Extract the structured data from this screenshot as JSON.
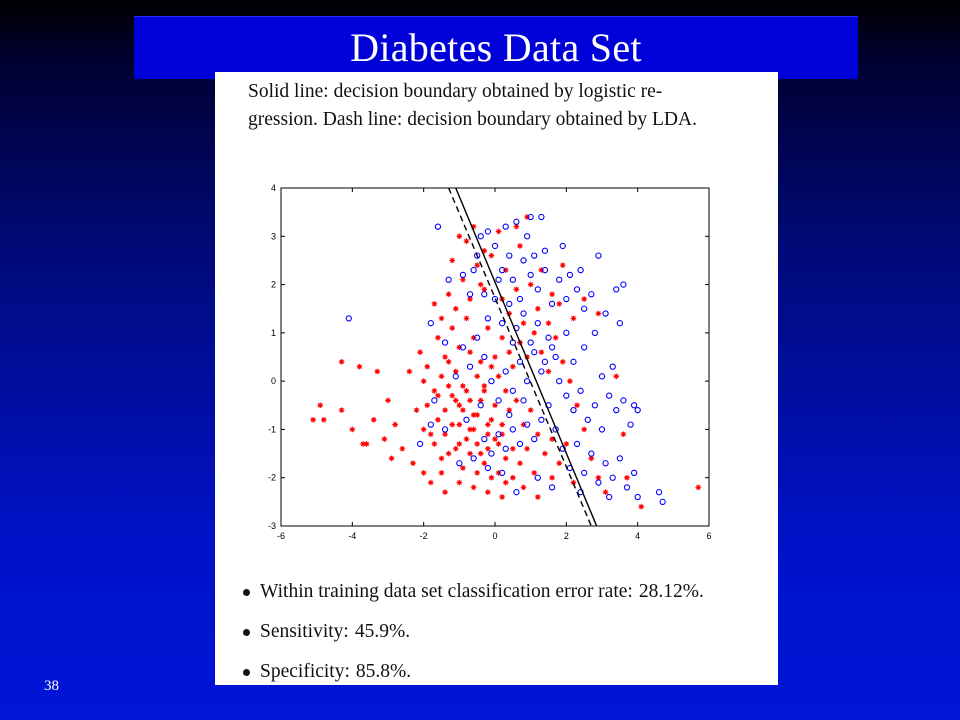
{
  "slide": {
    "title": "Diabetes Data Set",
    "page_number": "38"
  },
  "figure": {
    "caption_line1": "Solid line: decision boundary obtained by logistic re-",
    "caption_line2": "gression. Dash line: decision boundary obtained by LDA."
  },
  "bullets": [
    {
      "label": "Within training data set classification error rate:",
      "value": "28.12%."
    },
    {
      "label": "Sensitivity:",
      "value": "45.9%."
    },
    {
      "label": "Specificity:",
      "value": "85.8%."
    }
  ],
  "colors": {
    "slide_background": "#0012c8",
    "title_bar": "#0000d8",
    "class_star": "#ff0000",
    "class_circle": "#0000ff"
  },
  "chart_data": {
    "type": "scatter",
    "title": "",
    "xlabel": "",
    "ylabel": "",
    "xlim": [
      -6,
      6
    ],
    "ylim": [
      -3,
      4
    ],
    "xticks": [
      -6,
      -4,
      -2,
      0,
      2,
      4,
      6
    ],
    "yticks": [
      -3,
      -2,
      -1,
      0,
      1,
      2,
      3,
      4
    ],
    "grid": false,
    "series": [
      {
        "marker": "star",
        "color": "#ff0000",
        "points": [
          [
            -1.9,
            -0.5
          ],
          [
            -1.6,
            -0.8
          ],
          [
            -1.4,
            -1.1
          ],
          [
            -1.2,
            -0.3
          ],
          [
            -1.1,
            -1.4
          ],
          [
            -1.0,
            -0.9
          ],
          [
            -0.9,
            -0.6
          ],
          [
            -0.8,
            -1.2
          ],
          [
            -0.7,
            -0.4
          ],
          [
            -0.6,
            -1.0
          ],
          [
            -0.5,
            -0.7
          ],
          [
            -0.4,
            -1.5
          ],
          [
            -0.3,
            -0.2
          ],
          [
            -0.2,
            -1.1
          ],
          [
            -0.1,
            -0.8
          ],
          [
            0.0,
            -0.5
          ],
          [
            0.1,
            -1.3
          ],
          [
            0.2,
            -0.9
          ],
          [
            0.3,
            -1.6
          ],
          [
            0.4,
            -0.6
          ],
          [
            -1.5,
            -1.6
          ],
          [
            -1.3,
            -0.1
          ],
          [
            -1.1,
            0.2
          ],
          [
            -0.9,
            -1.8
          ],
          [
            -0.7,
            -1.5
          ],
          [
            -0.5,
            -1.9
          ],
          [
            -0.3,
            -1.7
          ],
          [
            -0.1,
            -2.0
          ],
          [
            0.1,
            -1.9
          ],
          [
            0.3,
            -2.1
          ],
          [
            -1.8,
            -1.1
          ],
          [
            -1.6,
            -0.3
          ],
          [
            -1.4,
            -0.6
          ],
          [
            -1.2,
            -0.9
          ],
          [
            -1.0,
            -1.3
          ],
          [
            -0.8,
            -0.2
          ],
          [
            -0.6,
            -0.7
          ],
          [
            -0.4,
            -0.4
          ],
          [
            -0.2,
            -0.9
          ],
          [
            0.0,
            -1.2
          ],
          [
            -2.2,
            -0.6
          ],
          [
            -2.0,
            -1.0
          ],
          [
            -1.7,
            -1.3
          ],
          [
            -1.3,
            -1.5
          ],
          [
            -1.0,
            -0.5
          ],
          [
            -0.7,
            -1.0
          ],
          [
            -0.5,
            -1.3
          ],
          [
            -0.2,
            -1.4
          ],
          [
            0.2,
            -1.1
          ],
          [
            0.5,
            -1.4
          ],
          [
            -2.4,
            0.2
          ],
          [
            -2.1,
            0.6
          ],
          [
            -1.9,
            0.3
          ],
          [
            -1.6,
            0.9
          ],
          [
            -1.4,
            0.5
          ],
          [
            -1.2,
            1.1
          ],
          [
            -1.0,
            0.7
          ],
          [
            -0.8,
            1.3
          ],
          [
            -0.6,
            0.9
          ],
          [
            -0.4,
            0.4
          ],
          [
            -1.7,
            1.6
          ],
          [
            -1.5,
            1.3
          ],
          [
            -1.3,
            1.8
          ],
          [
            -1.1,
            1.5
          ],
          [
            -0.9,
            2.1
          ],
          [
            -0.7,
            1.7
          ],
          [
            -0.5,
            2.4
          ],
          [
            -0.3,
            1.9
          ],
          [
            -0.1,
            2.6
          ],
          [
            -0.8,
            2.9
          ],
          [
            -1.2,
            2.5
          ],
          [
            -1.0,
            3.0
          ],
          [
            -0.6,
            3.2
          ],
          [
            -0.3,
            2.7
          ],
          [
            0.1,
            3.1
          ],
          [
            0.6,
            3.2
          ],
          [
            0.9,
            3.4
          ],
          [
            0.7,
            2.8
          ],
          [
            0.3,
            2.3
          ],
          [
            -0.4,
            2.0
          ],
          [
            -2.8,
            -0.9
          ],
          [
            -3.1,
            -1.2
          ],
          [
            -3.4,
            -0.8
          ],
          [
            -3.7,
            -1.3
          ],
          [
            -4.0,
            -1.0
          ],
          [
            -4.3,
            -0.6
          ],
          [
            -4.8,
            -0.8
          ],
          [
            -4.9,
            -0.5
          ],
          [
            -5.1,
            -0.8
          ],
          [
            -3.3,
            0.2
          ],
          [
            -3.0,
            -0.4
          ],
          [
            -2.6,
            -1.4
          ],
          [
            -2.3,
            -1.7
          ],
          [
            -2.0,
            -1.9
          ],
          [
            -1.8,
            -2.1
          ],
          [
            -1.5,
            -1.9
          ],
          [
            -4.3,
            0.4
          ],
          [
            -3.6,
            -1.3
          ],
          [
            -2.9,
            -1.6
          ],
          [
            -3.8,
            0.3
          ],
          [
            0.6,
            -0.4
          ],
          [
            0.8,
            -0.9
          ],
          [
            1.0,
            -0.6
          ],
          [
            1.2,
            -1.1
          ],
          [
            0.7,
            -1.7
          ],
          [
            0.9,
            -1.4
          ],
          [
            1.1,
            -1.9
          ],
          [
            1.4,
            -1.5
          ],
          [
            1.6,
            -1.2
          ],
          [
            1.8,
            -1.7
          ],
          [
            0.5,
            0.3
          ],
          [
            0.7,
            0.8
          ],
          [
            0.9,
            0.5
          ],
          [
            1.1,
            1.0
          ],
          [
            1.3,
            0.6
          ],
          [
            1.5,
            0.2
          ],
          [
            1.7,
            0.9
          ],
          [
            1.9,
            0.4
          ],
          [
            2.1,
            0.0
          ],
          [
            2.3,
            -0.5
          ],
          [
            2.5,
            -1.0
          ],
          [
            2.7,
            -1.6
          ],
          [
            2.9,
            -2.0
          ],
          [
            3.1,
            -2.3
          ],
          [
            2.0,
            -1.3
          ],
          [
            2.2,
            -2.1
          ],
          [
            1.6,
            -2.0
          ],
          [
            3.6,
            -1.1
          ],
          [
            3.4,
            0.1
          ],
          [
            5.7,
            -2.2
          ],
          [
            1.0,
            2.0
          ],
          [
            1.3,
            2.3
          ],
          [
            1.6,
            1.8
          ],
          [
            1.9,
            2.4
          ],
          [
            1.2,
            1.5
          ],
          [
            1.5,
            1.2
          ],
          [
            1.8,
            1.6
          ],
          [
            2.2,
            1.3
          ],
          [
            2.5,
            1.7
          ],
          [
            2.9,
            1.4
          ],
          [
            0.2,
            0.9
          ],
          [
            0.4,
            1.4
          ],
          [
            0.6,
            1.9
          ],
          [
            0.1,
            0.1
          ],
          [
            0.3,
            -0.2
          ],
          [
            0.0,
            0.5
          ],
          [
            -0.2,
            1.1
          ],
          [
            0.4,
            0.6
          ],
          [
            0.2,
            1.7
          ],
          [
            0.8,
            1.2
          ],
          [
            -0.3,
            -0.1
          ],
          [
            -0.1,
            0.3
          ],
          [
            -0.5,
            0.1
          ],
          [
            -0.7,
            0.6
          ],
          [
            -0.9,
            -0.1
          ],
          [
            -1.1,
            -0.4
          ],
          [
            -1.3,
            0.4
          ],
          [
            -1.5,
            0.1
          ],
          [
            -1.7,
            -0.2
          ],
          [
            -2.0,
            0.0
          ],
          [
            -0.6,
            -2.2
          ],
          [
            -0.2,
            -2.3
          ],
          [
            0.2,
            -2.4
          ],
          [
            -1.0,
            -2.1
          ],
          [
            -1.4,
            -2.3
          ],
          [
            0.5,
            -2.0
          ],
          [
            0.8,
            -2.2
          ],
          [
            1.2,
            -2.4
          ],
          [
            4.1,
            -2.6
          ],
          [
            3.7,
            -2.0
          ]
        ]
      },
      {
        "marker": "circle",
        "color": "#0000ff",
        "points": [
          [
            -4.1,
            1.3
          ],
          [
            -2.1,
            -1.3
          ],
          [
            -1.8,
            1.2
          ],
          [
            -1.7,
            -0.4
          ],
          [
            -1.4,
            0.8
          ],
          [
            -1.6,
            3.2
          ],
          [
            -1.3,
            2.1
          ],
          [
            -0.9,
            2.2
          ],
          [
            -0.7,
            1.8
          ],
          [
            -0.5,
            2.6
          ],
          [
            -0.4,
            3.0
          ],
          [
            -0.2,
            3.1
          ],
          [
            0.0,
            2.8
          ],
          [
            0.2,
            2.3
          ],
          [
            0.3,
            3.2
          ],
          [
            0.6,
            3.3
          ],
          [
            0.9,
            3.0
          ],
          [
            1.0,
            3.4
          ],
          [
            1.3,
            3.4
          ],
          [
            0.8,
            2.5
          ],
          [
            0.5,
            2.1
          ],
          [
            0.7,
            1.7
          ],
          [
            1.0,
            2.2
          ],
          [
            1.2,
            1.9
          ],
          [
            1.4,
            2.3
          ],
          [
            1.6,
            1.6
          ],
          [
            1.8,
            2.1
          ],
          [
            2.0,
            1.7
          ],
          [
            2.3,
            1.9
          ],
          [
            2.5,
            1.5
          ],
          [
            2.7,
            1.8
          ],
          [
            2.9,
            2.6
          ],
          [
            3.1,
            1.4
          ],
          [
            3.4,
            1.9
          ],
          [
            3.6,
            2.0
          ],
          [
            3.5,
            1.2
          ],
          [
            2.8,
            1.0
          ],
          [
            2.5,
            0.7
          ],
          [
            2.2,
            0.4
          ],
          [
            2.0,
            1.0
          ],
          [
            1.7,
            0.5
          ],
          [
            1.5,
            0.9
          ],
          [
            1.3,
            0.2
          ],
          [
            1.1,
            0.6
          ],
          [
            0.9,
            0.0
          ],
          [
            0.7,
            0.4
          ],
          [
            0.5,
            -0.2
          ],
          [
            0.3,
            0.2
          ],
          [
            0.1,
            -0.4
          ],
          [
            -0.1,
            0.0
          ],
          [
            -0.3,
            0.5
          ],
          [
            -0.5,
            0.9
          ],
          [
            -0.7,
            0.3
          ],
          [
            -0.9,
            0.7
          ],
          [
            -1.1,
            0.1
          ],
          [
            -0.2,
            1.3
          ],
          [
            0.0,
            1.7
          ],
          [
            0.2,
            1.2
          ],
          [
            0.4,
            1.6
          ],
          [
            0.6,
            1.1
          ],
          [
            0.8,
            1.4
          ],
          [
            1.0,
            0.8
          ],
          [
            1.2,
            1.2
          ],
          [
            1.4,
            0.4
          ],
          [
            1.6,
            0.7
          ],
          [
            1.8,
            0.0
          ],
          [
            2.0,
            -0.3
          ],
          [
            2.2,
            -0.6
          ],
          [
            2.4,
            -0.2
          ],
          [
            2.6,
            -0.8
          ],
          [
            2.8,
            -0.5
          ],
          [
            3.0,
            -1.0
          ],
          [
            3.2,
            -0.3
          ],
          [
            3.4,
            -0.6
          ],
          [
            3.6,
            -0.4
          ],
          [
            3.8,
            -0.9
          ],
          [
            3.3,
            0.3
          ],
          [
            3.0,
            0.1
          ],
          [
            3.9,
            -0.5
          ],
          [
            4.0,
            -0.6
          ],
          [
            1.5,
            -0.5
          ],
          [
            1.3,
            -0.8
          ],
          [
            1.1,
            -1.2
          ],
          [
            0.9,
            -0.9
          ],
          [
            0.7,
            -1.3
          ],
          [
            0.5,
            -1.0
          ],
          [
            0.3,
            -1.4
          ],
          [
            0.1,
            -1.1
          ],
          [
            -0.1,
            -1.5
          ],
          [
            -0.3,
            -1.2
          ],
          [
            1.7,
            -1.0
          ],
          [
            1.9,
            -1.4
          ],
          [
            2.1,
            -1.8
          ],
          [
            2.3,
            -1.3
          ],
          [
            2.5,
            -1.9
          ],
          [
            2.7,
            -1.5
          ],
          [
            2.9,
            -2.1
          ],
          [
            3.1,
            -1.7
          ],
          [
            3.3,
            -2.0
          ],
          [
            3.5,
            -1.6
          ],
          [
            3.7,
            -2.2
          ],
          [
            3.9,
            -1.9
          ],
          [
            4.0,
            -2.4
          ],
          [
            4.6,
            -2.3
          ],
          [
            4.7,
            -2.5
          ],
          [
            3.2,
            -2.4
          ],
          [
            2.4,
            -2.3
          ],
          [
            1.6,
            -2.2
          ],
          [
            1.2,
            -2.0
          ],
          [
            0.6,
            -2.3
          ],
          [
            0.2,
            -1.9
          ],
          [
            -0.2,
            -1.8
          ],
          [
            -0.6,
            -1.6
          ],
          [
            -1.0,
            -1.7
          ],
          [
            -1.4,
            -1.0
          ],
          [
            -1.8,
            -0.9
          ],
          [
            -0.8,
            -0.8
          ],
          [
            -0.4,
            -0.5
          ],
          [
            0.4,
            -0.7
          ],
          [
            0.8,
            -0.4
          ],
          [
            1.4,
            2.7
          ],
          [
            1.1,
            2.6
          ],
          [
            0.4,
            2.6
          ],
          [
            -0.6,
            2.3
          ],
          [
            -0.3,
            1.8
          ],
          [
            0.1,
            2.1
          ],
          [
            2.1,
            2.2
          ],
          [
            2.4,
            2.3
          ],
          [
            1.9,
            2.8
          ],
          [
            0.5,
            0.8
          ]
        ]
      }
    ],
    "lines": [
      {
        "name": "logistic regression",
        "style": "solid",
        "color": "#000000",
        "points": [
          [
            -1.1,
            4.0
          ],
          [
            2.85,
            -3.0
          ]
        ]
      },
      {
        "name": "LDA",
        "style": "dash",
        "color": "#000000",
        "points": [
          [
            -1.3,
            4.0
          ],
          [
            2.7,
            -3.0
          ]
        ]
      }
    ]
  }
}
